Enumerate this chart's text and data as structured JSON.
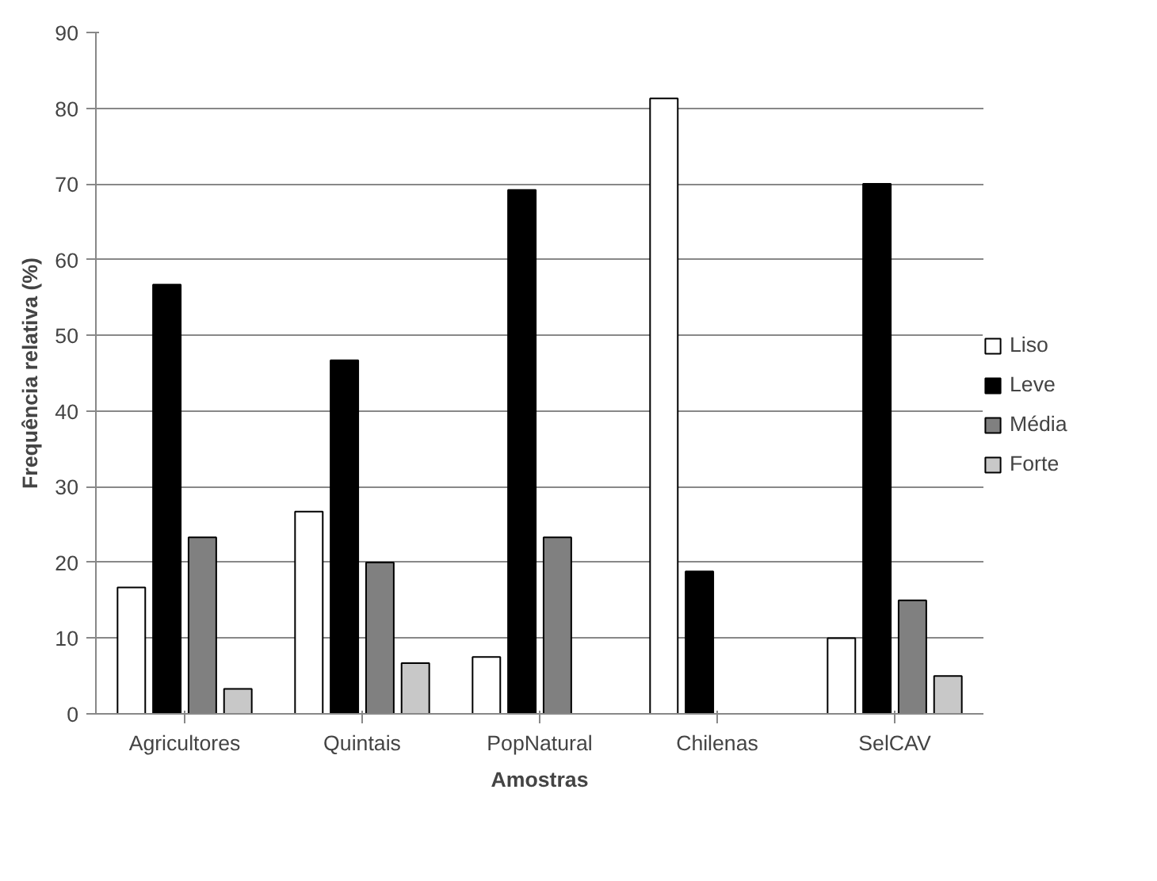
{
  "chart_data": {
    "type": "bar",
    "xlabel": "Amostras",
    "ylabel": "Frequência relativa (%)",
    "categories": [
      "Agricultores",
      "Quintais",
      "PopNatural",
      "Chilenas",
      "SelCAV"
    ],
    "series": [
      {
        "name": "Liso",
        "color": "#ffffff",
        "values": [
          16.7,
          26.7,
          7.5,
          81.3,
          10
        ]
      },
      {
        "name": "Leve",
        "color": "#000000",
        "values": [
          56.7,
          46.7,
          69.2,
          18.8,
          70
        ]
      },
      {
        "name": "Média",
        "color": "#808080",
        "values": [
          23.3,
          20,
          23.3,
          null,
          15
        ]
      },
      {
        "name": "Forte",
        "color": "#c8c8c8",
        "values": [
          3.3,
          6.7,
          null,
          null,
          5
        ]
      }
    ],
    "ylim": [
      0,
      90
    ],
    "yticks": [
      0,
      10,
      20,
      30,
      40,
      50,
      60,
      70,
      80,
      90
    ],
    "grid": "y",
    "legend": "right"
  }
}
